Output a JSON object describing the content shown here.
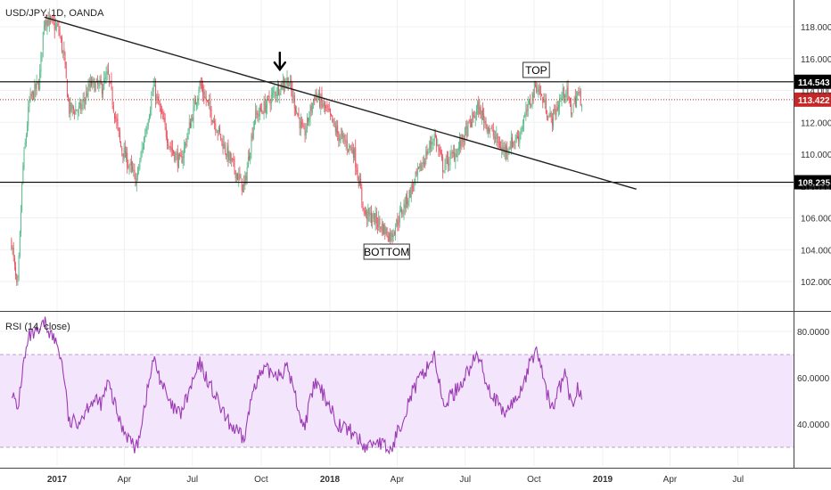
{
  "header": {
    "symbol_label": "USD/JPY, 1D, OANDA",
    "rsi_label": "RSI (14, close)"
  },
  "colors": {
    "up": "#53b987",
    "down": "#eb4d5c",
    "rsi_line": "#9c3bb5",
    "rsi_band": "#f3e5fb",
    "rsi_band_edge": "#b9a3c7",
    "last_price": "#c62828",
    "level_box": "#000000",
    "grid": "#eef0f3"
  },
  "chart_data": [
    {
      "type": "candlestick",
      "title": "USD/JPY, 1D, OANDA",
      "x_ticks": [
        "2017",
        "Apr",
        "Jul",
        "Oct",
        "2018",
        "Apr",
        "Jul",
        "Oct",
        "2019",
        "Apr",
        "Jul"
      ],
      "x_tick_dates": [
        "2017-01-01",
        "2017-04-01",
        "2017-07-01",
        "2017-10-01",
        "2018-01-01",
        "2018-04-01",
        "2018-07-01",
        "2018-10-01",
        "2019-01-01",
        "2019-04-01",
        "2019-07-01"
      ],
      "y_ticks": [
        "102.000",
        "104.000",
        "106.000",
        "108.000",
        "110.000",
        "112.000",
        "114.000",
        "116.000",
        "118.000"
      ],
      "y_range": [
        100.7,
        118.9
      ],
      "path": [
        [
          "2016-11-01",
          104.5
        ],
        [
          "2016-11-09",
          101.2
        ],
        [
          "2016-11-16",
          109.0
        ],
        [
          "2016-11-25",
          113.3
        ],
        [
          "2016-12-08",
          114.5
        ],
        [
          "2016-12-15",
          118.6
        ],
        [
          "2017-01-03",
          117.8
        ],
        [
          "2017-01-10",
          116.1
        ],
        [
          "2017-01-17",
          112.8
        ],
        [
          "2017-02-01",
          112.8
        ],
        [
          "2017-02-15",
          114.4
        ],
        [
          "2017-03-02",
          114.2
        ],
        [
          "2017-03-10",
          115.0
        ],
        [
          "2017-03-27",
          110.5
        ],
        [
          "2017-04-17",
          108.3
        ],
        [
          "2017-05-10",
          114.2
        ],
        [
          "2017-06-01",
          110.5
        ],
        [
          "2017-06-15",
          109.4
        ],
        [
          "2017-07-11",
          114.4
        ],
        [
          "2017-08-15",
          110.2
        ],
        [
          "2017-09-08",
          107.8
        ],
        [
          "2017-09-22",
          112.3
        ],
        [
          "2017-10-06",
          113.0
        ],
        [
          "2017-10-26",
          114.3
        ],
        [
          "2017-11-06",
          114.7
        ],
        [
          "2017-11-27",
          111.1
        ],
        [
          "2017-12-12",
          113.8
        ],
        [
          "2017-12-29",
          112.6
        ],
        [
          "2018-01-12",
          111.2
        ],
        [
          "2018-02-02",
          110.2
        ],
        [
          "2018-02-16",
          106.3
        ],
        [
          "2018-03-05",
          105.8
        ],
        [
          "2018-03-23",
          104.8
        ],
        [
          "2018-04-20",
          107.8
        ],
        [
          "2018-05-21",
          111.2
        ],
        [
          "2018-06-01",
          109.2
        ],
        [
          "2018-06-20",
          110.2
        ],
        [
          "2018-07-18",
          112.9
        ],
        [
          "2018-08-01",
          111.7
        ],
        [
          "2018-08-21",
          110.2
        ],
        [
          "2018-09-10",
          111.1
        ],
        [
          "2018-10-04",
          114.4
        ],
        [
          "2018-10-24",
          112.1
        ],
        [
          "2018-11-12",
          114.1
        ],
        [
          "2018-11-20",
          112.7
        ],
        [
          "2018-11-28",
          113.8
        ],
        [
          "2018-12-05",
          113.3
        ]
      ],
      "horizontal_levels": [
        114.543,
        108.235
      ],
      "last_price": 113.422,
      "level_labels": [
        "114.543",
        "108.235"
      ],
      "last_price_label": "113.422",
      "trendline": {
        "start": [
          "2016-12-15",
          118.6
        ],
        "end": [
          "2019-02-15",
          107.8
        ]
      },
      "annotations": {
        "top": "TOP",
        "bottom": "BOTTOM"
      },
      "markers": [
        {
          "type": "arrow-down",
          "date": "2017-10-26",
          "price": 114.3
        }
      ]
    },
    {
      "type": "line",
      "title": "RSI (14, close)",
      "y_ticks": [
        "40.0000",
        "60.0000",
        "80.0000"
      ],
      "y_range": [
        20,
        87
      ],
      "band": [
        30,
        70
      ],
      "path": [
        [
          "2016-11-01",
          55
        ],
        [
          "2016-11-09",
          45
        ],
        [
          "2016-11-16",
          64
        ],
        [
          "2016-11-25",
          78
        ],
        [
          "2016-12-08",
          79
        ],
        [
          "2016-12-15",
          84
        ],
        [
          "2017-01-03",
          73
        ],
        [
          "2017-01-10",
          62
        ],
        [
          "2017-01-17",
          40
        ],
        [
          "2017-02-01",
          42
        ],
        [
          "2017-02-15",
          50
        ],
        [
          "2017-03-02",
          49
        ],
        [
          "2017-03-10",
          58
        ],
        [
          "2017-03-27",
          40
        ],
        [
          "2017-04-17",
          29
        ],
        [
          "2017-05-10",
          68
        ],
        [
          "2017-06-01",
          48
        ],
        [
          "2017-06-15",
          44
        ],
        [
          "2017-07-11",
          66
        ],
        [
          "2017-08-15",
          42
        ],
        [
          "2017-09-08",
          33
        ],
        [
          "2017-09-22",
          58
        ],
        [
          "2017-10-06",
          63
        ],
        [
          "2017-10-26",
          62
        ],
        [
          "2017-11-06",
          64
        ],
        [
          "2017-11-27",
          38
        ],
        [
          "2017-12-12",
          58
        ],
        [
          "2017-12-29",
          50
        ],
        [
          "2018-01-12",
          40
        ],
        [
          "2018-02-02",
          36
        ],
        [
          "2018-02-16",
          30
        ],
        [
          "2018-03-05",
          33
        ],
        [
          "2018-03-23",
          28
        ],
        [
          "2018-04-20",
          53
        ],
        [
          "2018-05-21",
          70
        ],
        [
          "2018-06-01",
          48
        ],
        [
          "2018-06-20",
          55
        ],
        [
          "2018-07-18",
          70
        ],
        [
          "2018-08-01",
          56
        ],
        [
          "2018-08-21",
          44
        ],
        [
          "2018-09-10",
          52
        ],
        [
          "2018-10-04",
          73
        ],
        [
          "2018-10-24",
          46
        ],
        [
          "2018-11-12",
          62
        ],
        [
          "2018-11-20",
          47
        ],
        [
          "2018-11-28",
          56
        ],
        [
          "2018-12-05",
          53
        ]
      ]
    }
  ]
}
